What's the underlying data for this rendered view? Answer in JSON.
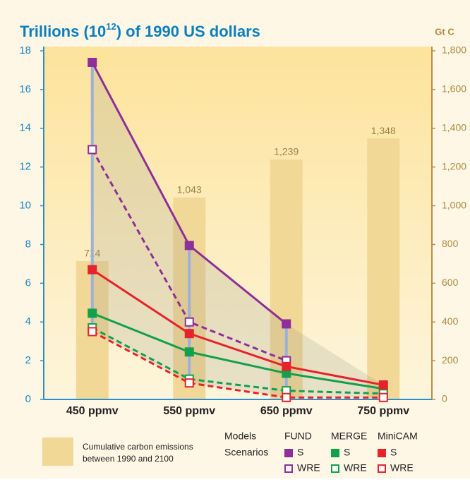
{
  "chart_data": {
    "type": "combo",
    "title": [
      "Trillions (10",
      "12",
      ") of 1990 US dollars"
    ],
    "y2_label": "Gt C",
    "categories": [
      "450 ppmv",
      "550 ppmv",
      "650 ppmv",
      "750 ppmv"
    ],
    "ylim": [
      0,
      18
    ],
    "yticks": [
      0,
      2,
      4,
      6,
      8,
      10,
      12,
      14,
      16,
      18
    ],
    "y2lim": [
      0,
      1800
    ],
    "y2ticks": [
      0,
      200,
      400,
      600,
      800,
      {
        "value": 1000,
        "label": "1,000"
      },
      {
        "value": 1200,
        "label": "1,200"
      },
      {
        "value": 1400,
        "label": "1,400"
      },
      {
        "value": 1600,
        "label": "1,600"
      },
      {
        "value": 1800,
        "label": "1,800"
      }
    ],
    "models_label": "Models",
    "scenarios_label": "Scenarios",
    "series": [
      {
        "type": "bar",
        "axis": "y2",
        "name": [
          "Cumulative carbon emissions",
          "between 1990 and 2100"
        ],
        "color": "#f2d896",
        "values": [
          714,
          1043,
          1239,
          1348
        ],
        "value_labels": [
          "714",
          "1,043",
          "1,239",
          "1,348"
        ]
      },
      {
        "type": "line",
        "group": "FUND",
        "name": "S",
        "color": "#8e2f9a",
        "dashed": false,
        "values": [
          17.4,
          7.95,
          3.9,
          null
        ]
      },
      {
        "type": "line",
        "group": "FUND",
        "name": "WRE",
        "color": "#8e2f9a",
        "dashed": true,
        "values": [
          12.9,
          4.0,
          2.0,
          null
        ]
      },
      {
        "type": "line",
        "group": "MERGE",
        "name": "S",
        "color": "#13a04a",
        "dashed": false,
        "values": [
          4.45,
          2.45,
          1.35,
          0.55
        ]
      },
      {
        "type": "line",
        "group": "MERGE",
        "name": "WRE",
        "color": "#13a04a",
        "dashed": true,
        "values": [
          3.7,
          1.05,
          0.45,
          0.3
        ]
      },
      {
        "type": "line",
        "group": "MiniCAM",
        "name": "S",
        "color": "#e8222a",
        "dashed": false,
        "values": [
          6.7,
          3.4,
          1.7,
          0.75
        ]
      },
      {
        "type": "line",
        "group": "MiniCAM",
        "name": "WRE",
        "color": "#e8222a",
        "dashed": true,
        "values": [
          3.5,
          0.85,
          0.1,
          0.1
        ]
      }
    ]
  }
}
